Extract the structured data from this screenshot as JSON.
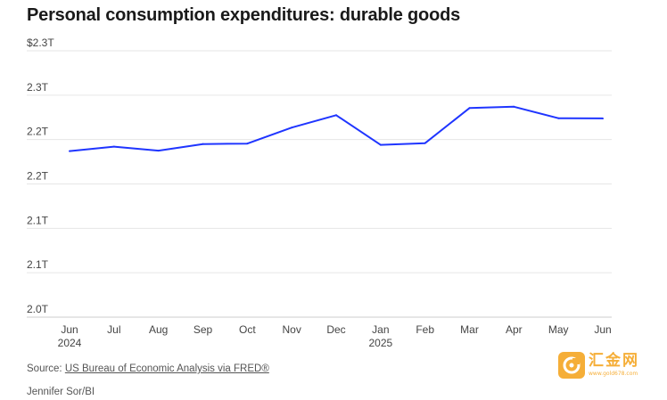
{
  "chart_data": {
    "type": "line",
    "title": "Personal consumption expenditures: durable goods",
    "xlabel": "",
    "ylabel": "",
    "categories": [
      "Jun\n2024",
      "Jul",
      "Aug",
      "Sep",
      "Oct",
      "Nov",
      "Dec",
      "Jan\n2025",
      "Feb",
      "Mar",
      "Apr",
      "May",
      "Jun"
    ],
    "series": [
      {
        "name": "",
        "color": "#1f35ff",
        "values": [
          2.187,
          2.192,
          2.1875,
          2.195,
          2.1955,
          2.2135,
          2.2275,
          2.194,
          2.196,
          2.2355,
          2.237,
          2.224,
          2.2238
        ]
      }
    ],
    "y_ticks": [
      {
        "value": 2.3,
        "label": "$2.3T"
      },
      {
        "value": 2.25,
        "label": "2.3T"
      },
      {
        "value": 2.2,
        "label": "2.2T"
      },
      {
        "value": 2.15,
        "label": "2.2T"
      },
      {
        "value": 2.1,
        "label": "2.1T"
      },
      {
        "value": 2.05,
        "label": "2.1T"
      },
      {
        "value": 2.0,
        "label": "2.0T"
      }
    ],
    "ylim": [
      2.0,
      2.3
    ],
    "grid": true,
    "legend": "none"
  },
  "footer": {
    "source_prefix": "Source: ",
    "source_link": "US Bureau of Economic Analysis via FRED®",
    "credit": "Jennifer Sor/BI"
  },
  "watermark": {
    "name": "汇金网",
    "url": "www.gold678.com",
    "color": "#f5a623"
  }
}
